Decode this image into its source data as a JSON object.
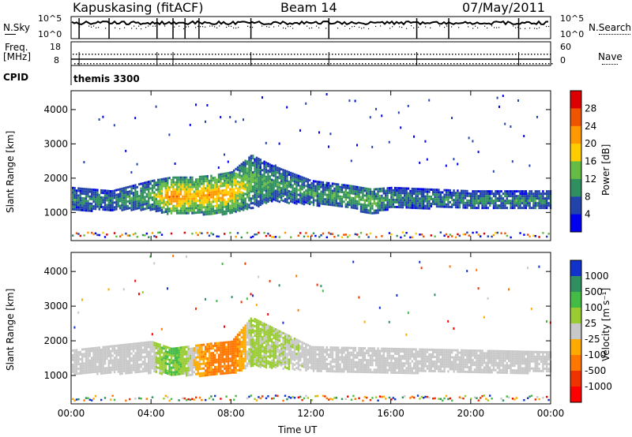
{
  "header": {
    "station": "Kapuskasing (fitACF)",
    "beam": "Beam 14",
    "date": "07/May/2011"
  },
  "summary_panels": {
    "nsky_label": "N.Sky",
    "nsearch_label": "N.Search",
    "freq_label": "Freq.",
    "freq_unit": "[MHz]",
    "nave_label": "Nave",
    "cpid_label": "CPID",
    "cpid_value": "themis 3300",
    "noise_left_ticks": [
      "10^5",
      "10^0"
    ],
    "noise_right_ticks": [
      "10^5",
      "10^0"
    ],
    "freq_ticks": [
      "18",
      "8"
    ],
    "nave_ticks": [
      "60",
      "0"
    ]
  },
  "colorbars": {
    "power_label": "Power [dB]",
    "power_ticks": [
      "28",
      "24",
      "20",
      "16",
      "12",
      "8",
      "4"
    ],
    "power_colors": [
      "#dd0000",
      "#ee5500",
      "#ff9900",
      "#ffcc00",
      "#66bb44",
      "#2f8f5f",
      "#2244aa",
      "#0000ee"
    ],
    "velocity_label": "Velocity [m s⁻¹]",
    "velocity_ticks": [
      "1000",
      "500",
      "100",
      "25",
      "-25",
      "-100",
      "-500",
      "-1000"
    ],
    "velocity_colors": [
      "#1133cc",
      "#2f8f5f",
      "#44bb44",
      "#99cc33",
      "#c8c8c8",
      "#ffaa00",
      "#ff7700",
      "#ee3300",
      "#ff0000"
    ]
  },
  "chart_data": [
    {
      "type": "heatmap",
      "title": "",
      "quantity": "Power",
      "unit": "dB",
      "xlabel": "Time UT",
      "ylabel": "Slant Range [km]",
      "xlim_hours_ut": [
        0,
        24
      ],
      "ylim_km": [
        180,
        4550
      ],
      "x_ticks": [
        "00:00",
        "04:00",
        "08:00",
        "12:00",
        "16:00",
        "20:00",
        "00:00"
      ],
      "y_ticks": [
        "1000",
        "2000",
        "3000",
        "4000"
      ],
      "color_range_db": [
        0,
        30
      ],
      "main_echo_band": [
        {
          "hour": 0,
          "range_min": 1050,
          "range_max": 1750,
          "power": 8
        },
        {
          "hour": 2,
          "range_min": 1100,
          "range_max": 1650,
          "power": 8
        },
        {
          "hour": 4,
          "range_min": 1100,
          "range_max": 1950,
          "power": 12
        },
        {
          "hour": 5,
          "range_min": 950,
          "range_max": 2050,
          "power": 24
        },
        {
          "hour": 6,
          "range_min": 1000,
          "range_max": 2050,
          "power": 20
        },
        {
          "hour": 7,
          "range_min": 950,
          "range_max": 2100,
          "power": 22
        },
        {
          "hour": 8,
          "range_min": 1000,
          "range_max": 2200,
          "power": 20
        },
        {
          "hour": 9,
          "range_min": 1150,
          "range_max": 2700,
          "power": 12
        },
        {
          "hour": 10,
          "range_min": 1350,
          "range_max": 2400,
          "power": 10
        },
        {
          "hour": 12,
          "range_min": 1250,
          "range_max": 1950,
          "power": 10
        },
        {
          "hour": 14,
          "range_min": 1150,
          "range_max": 1800,
          "power": 11
        },
        {
          "hour": 15,
          "range_min": 950,
          "range_max": 1700,
          "power": 13
        },
        {
          "hour": 16,
          "range_min": 1150,
          "range_max": 1750,
          "power": 9
        },
        {
          "hour": 18,
          "range_min": 1150,
          "range_max": 1700,
          "power": 8
        },
        {
          "hour": 20,
          "range_min": 1100,
          "range_max": 1650,
          "power": 8
        },
        {
          "hour": 24,
          "range_min": 1100,
          "range_max": 1650,
          "power": 8
        }
      ]
    },
    {
      "type": "heatmap",
      "title": "",
      "quantity": "Velocity",
      "unit": "m s⁻¹",
      "xlabel": "Time UT",
      "ylabel": "Slant Range [km]",
      "xlim_hours_ut": [
        0,
        24
      ],
      "ylim_km": [
        180,
        4550
      ],
      "x_ticks": [
        "00:00",
        "04:00",
        "08:00",
        "12:00",
        "16:00",
        "20:00",
        "00:00"
      ],
      "y_ticks": [
        "1000",
        "2000",
        "3000",
        "4000"
      ],
      "color_range_ms": [
        -1000,
        1000
      ],
      "main_echo_band": [
        {
          "hour": 0,
          "range_min": 1050,
          "range_max": 1750,
          "velocity": 0
        },
        {
          "hour": 4,
          "range_min": 1100,
          "range_max": 2000,
          "velocity": 0
        },
        {
          "hour": 5,
          "range_min": 1050,
          "range_max": 1800,
          "velocity": 150
        },
        {
          "hour": 7,
          "range_min": 1000,
          "range_max": 1950,
          "velocity": -150
        },
        {
          "hour": 8,
          "range_min": 1050,
          "range_max": 2000,
          "velocity": -200
        },
        {
          "hour": 9,
          "range_min": 1300,
          "range_max": 2700,
          "velocity": 50
        },
        {
          "hour": 12,
          "range_min": 1150,
          "range_max": 1850,
          "velocity": 0
        },
        {
          "hour": 16,
          "range_min": 1100,
          "range_max": 1800,
          "velocity": 0
        },
        {
          "hour": 24,
          "range_min": 1100,
          "range_max": 1700,
          "velocity": 0
        }
      ]
    }
  ]
}
